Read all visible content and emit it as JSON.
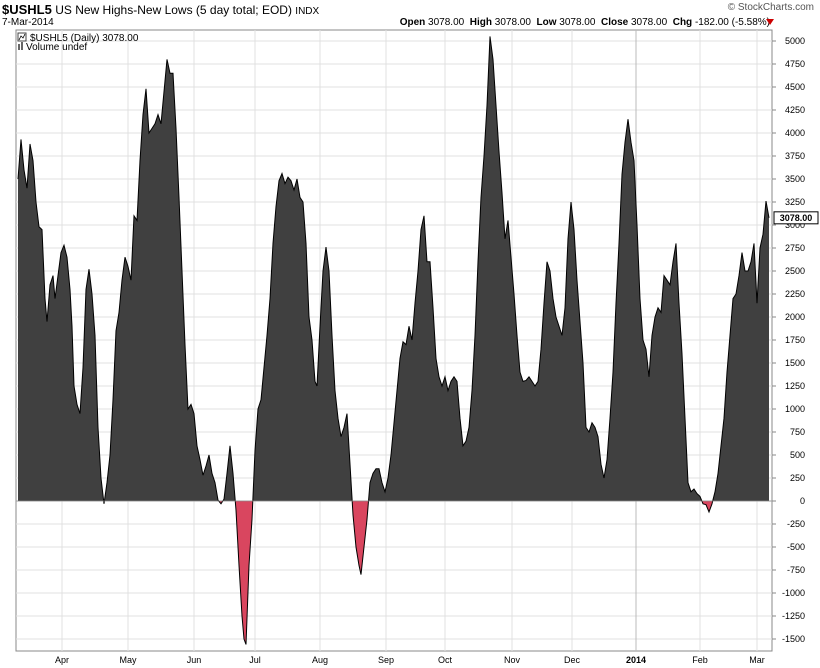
{
  "header": {
    "symbol": "$USHL5",
    "description": "US New Highs-New Lows (5 day total; EOD)",
    "exchange": "INDX",
    "date": "7-Mar-2014",
    "brand": "© StockCharts.com",
    "open_label": "Open",
    "open": "3078.00",
    "high_label": "High",
    "high": "3078.00",
    "low_label": "Low",
    "low": "3078.00",
    "close_label": "Close",
    "close": "3078.00",
    "chg_label": "Chg",
    "chg": "-182.00 (-5.58%)",
    "chg_color": "#cc0000"
  },
  "legend": {
    "series": "$USHL5 (Daily) 3078.00",
    "volume": "Volume undef"
  },
  "last_value_label": "3078.00",
  "colors": {
    "positive_fill": "#404040",
    "negative_fill": "#d9465f",
    "line": "#000000",
    "grid": "#e0e0e0"
  },
  "chart_data": {
    "type": "area",
    "title": "US New Highs-New Lows (5 day total; EOD)",
    "ylim": [
      -1600,
      5100
    ],
    "yticks": [
      -1500,
      -1250,
      -1000,
      -750,
      -500,
      -250,
      0,
      250,
      500,
      750,
      1000,
      1250,
      1500,
      1750,
      2000,
      2250,
      2500,
      2750,
      3000,
      3250,
      3500,
      3750,
      4000,
      4250,
      4500,
      4750,
      5000
    ],
    "xticks": [
      {
        "label": "Apr",
        "pos": 62
      },
      {
        "label": "May",
        "pos": 128
      },
      {
        "label": "Jun",
        "pos": 194
      },
      {
        "label": "Jul",
        "pos": 255
      },
      {
        "label": "Aug",
        "pos": 320
      },
      {
        "label": "Sep",
        "pos": 386
      },
      {
        "label": "Oct",
        "pos": 445
      },
      {
        "label": "Nov",
        "pos": 512
      },
      {
        "label": "Dec",
        "pos": 572
      },
      {
        "label": "2014",
        "pos": 636
      },
      {
        "label": "Feb",
        "pos": 700
      },
      {
        "label": "Mar",
        "pos": 757
      }
    ],
    "x_range": [
      18,
      769
    ],
    "grid": true,
    "series": [
      {
        "name": "$USHL5",
        "points": [
          [
            18,
            3500
          ],
          [
            21,
            3930
          ],
          [
            24,
            3600
          ],
          [
            27,
            3400
          ],
          [
            30,
            3880
          ],
          [
            33,
            3700
          ],
          [
            36,
            3250
          ],
          [
            39,
            2980
          ],
          [
            42,
            2950
          ],
          [
            45,
            2200
          ],
          [
            47,
            1950
          ],
          [
            50,
            2350
          ],
          [
            53,
            2450
          ],
          [
            55,
            2200
          ],
          [
            58,
            2450
          ],
          [
            61,
            2700
          ],
          [
            64,
            2780
          ],
          [
            67,
            2650
          ],
          [
            70,
            2300
          ],
          [
            72,
            1900
          ],
          [
            74,
            1250
          ],
          [
            77,
            1050
          ],
          [
            80,
            950
          ],
          [
            83,
            1450
          ],
          [
            86,
            2300
          ],
          [
            89,
            2520
          ],
          [
            92,
            2250
          ],
          [
            95,
            1800
          ],
          [
            98,
            800
          ],
          [
            101,
            250
          ],
          [
            104,
            -30
          ],
          [
            107,
            200
          ],
          [
            110,
            500
          ],
          [
            113,
            1100
          ],
          [
            116,
            1850
          ],
          [
            119,
            2050
          ],
          [
            122,
            2400
          ],
          [
            125,
            2650
          ],
          [
            128,
            2550
          ],
          [
            131,
            2400
          ],
          [
            134,
            3100
          ],
          [
            137,
            3050
          ],
          [
            140,
            3700
          ],
          [
            143,
            4200
          ],
          [
            146,
            4480
          ],
          [
            149,
            4000
          ],
          [
            152,
            4050
          ],
          [
            155,
            4100
          ],
          [
            158,
            4200
          ],
          [
            161,
            4100
          ],
          [
            164,
            4450
          ],
          [
            167,
            4800
          ],
          [
            170,
            4650
          ],
          [
            173,
            4650
          ],
          [
            176,
            4050
          ],
          [
            179,
            3300
          ],
          [
            182,
            2500
          ],
          [
            185,
            1700
          ],
          [
            188,
            1000
          ],
          [
            191,
            1050
          ],
          [
            194,
            950
          ],
          [
            197,
            600
          ],
          [
            200,
            450
          ],
          [
            203,
            280
          ],
          [
            206,
            380
          ],
          [
            209,
            500
          ],
          [
            212,
            300
          ],
          [
            215,
            200
          ],
          [
            218,
            10
          ],
          [
            221,
            -30
          ],
          [
            224,
            20
          ],
          [
            227,
            300
          ],
          [
            230,
            600
          ],
          [
            233,
            300
          ],
          [
            236,
            -100
          ],
          [
            239,
            -700
          ],
          [
            242,
            -1250
          ],
          [
            244,
            -1500
          ],
          [
            246,
            -1560
          ],
          [
            249,
            -700
          ],
          [
            252,
            -200
          ],
          [
            255,
            550
          ],
          [
            258,
            1000
          ],
          [
            261,
            1100
          ],
          [
            264,
            1450
          ],
          [
            267,
            1800
          ],
          [
            270,
            2200
          ],
          [
            273,
            2800
          ],
          [
            276,
            3200
          ],
          [
            279,
            3480
          ],
          [
            282,
            3560
          ],
          [
            285,
            3450
          ],
          [
            288,
            3520
          ],
          [
            291,
            3480
          ],
          [
            294,
            3380
          ],
          [
            297,
            3500
          ],
          [
            300,
            3300
          ],
          [
            303,
            3250
          ],
          [
            306,
            2800
          ],
          [
            309,
            2000
          ],
          [
            312,
            1750
          ],
          [
            315,
            1300
          ],
          [
            317,
            1250
          ],
          [
            320,
            1900
          ],
          [
            323,
            2500
          ],
          [
            326,
            2760
          ],
          [
            329,
            2500
          ],
          [
            332,
            1800
          ],
          [
            335,
            1200
          ],
          [
            338,
            900
          ],
          [
            341,
            700
          ],
          [
            344,
            800
          ],
          [
            347,
            950
          ],
          [
            350,
            400
          ],
          [
            353,
            -150
          ],
          [
            356,
            -500
          ],
          [
            359,
            -700
          ],
          [
            361,
            -800
          ],
          [
            364,
            -500
          ],
          [
            367,
            -200
          ],
          [
            370,
            200
          ],
          [
            373,
            300
          ],
          [
            376,
            350
          ],
          [
            379,
            350
          ],
          [
            382,
            200
          ],
          [
            385,
            100
          ],
          [
            388,
            250
          ],
          [
            391,
            500
          ],
          [
            394,
            850
          ],
          [
            397,
            1200
          ],
          [
            400,
            1550
          ],
          [
            403,
            1730
          ],
          [
            406,
            1700
          ],
          [
            409,
            1900
          ],
          [
            412,
            1750
          ],
          [
            415,
            2150
          ],
          [
            418,
            2500
          ],
          [
            421,
            2950
          ],
          [
            424,
            3100
          ],
          [
            427,
            2600
          ],
          [
            430,
            2600
          ],
          [
            433,
            2100
          ],
          [
            436,
            1550
          ],
          [
            439,
            1350
          ],
          [
            442,
            1250
          ],
          [
            445,
            1350
          ],
          [
            448,
            1200
          ],
          [
            451,
            1300
          ],
          [
            454,
            1350
          ],
          [
            457,
            1300
          ],
          [
            460,
            900
          ],
          [
            463,
            600
          ],
          [
            466,
            650
          ],
          [
            469,
            800
          ],
          [
            472,
            1200
          ],
          [
            475,
            1800
          ],
          [
            478,
            2600
          ],
          [
            481,
            3300
          ],
          [
            484,
            3750
          ],
          [
            487,
            4300
          ],
          [
            490,
            5050
          ],
          [
            493,
            4800
          ],
          [
            496,
            4300
          ],
          [
            499,
            3800
          ],
          [
            502,
            3350
          ],
          [
            505,
            2850
          ],
          [
            508,
            3050
          ],
          [
            511,
            2650
          ],
          [
            514,
            2250
          ],
          [
            517,
            1800
          ],
          [
            520,
            1400
          ],
          [
            523,
            1300
          ],
          [
            526,
            1310
          ],
          [
            529,
            1350
          ],
          [
            532,
            1300
          ],
          [
            535,
            1250
          ],
          [
            538,
            1300
          ],
          [
            541,
            1650
          ],
          [
            544,
            2150
          ],
          [
            547,
            2600
          ],
          [
            550,
            2500
          ],
          [
            553,
            2200
          ],
          [
            556,
            2000
          ],
          [
            559,
            1900
          ],
          [
            562,
            1800
          ],
          [
            565,
            2100
          ],
          [
            568,
            2850
          ],
          [
            571,
            3250
          ],
          [
            574,
            2950
          ],
          [
            577,
            2400
          ],
          [
            580,
            1950
          ],
          [
            583,
            1500
          ],
          [
            586,
            800
          ],
          [
            589,
            750
          ],
          [
            592,
            850
          ],
          [
            595,
            800
          ],
          [
            598,
            700
          ],
          [
            601,
            400
          ],
          [
            604,
            250
          ],
          [
            607,
            450
          ],
          [
            610,
            900
          ],
          [
            613,
            1400
          ],
          [
            616,
            2150
          ],
          [
            619,
            2800
          ],
          [
            622,
            3550
          ],
          [
            625,
            3900
          ],
          [
            628,
            4150
          ],
          [
            631,
            3900
          ],
          [
            634,
            3700
          ],
          [
            637,
            3000
          ],
          [
            640,
            2200
          ],
          [
            643,
            1750
          ],
          [
            646,
            1650
          ],
          [
            649,
            1350
          ],
          [
            652,
            1800
          ],
          [
            655,
            2000
          ],
          [
            658,
            2100
          ],
          [
            661,
            2050
          ],
          [
            664,
            2450
          ],
          [
            667,
            2400
          ],
          [
            670,
            2350
          ],
          [
            673,
            2600
          ],
          [
            676,
            2800
          ],
          [
            679,
            2150
          ],
          [
            682,
            1600
          ],
          [
            685,
            900
          ],
          [
            688,
            200
          ],
          [
            691,
            100
          ],
          [
            694,
            130
          ],
          [
            697,
            80
          ],
          [
            700,
            50
          ],
          [
            703,
            -30
          ],
          [
            706,
            -40
          ],
          [
            709,
            -120
          ],
          [
            712,
            -30
          ],
          [
            715,
            100
          ],
          [
            718,
            300
          ],
          [
            721,
            600
          ],
          [
            724,
            900
          ],
          [
            727,
            1400
          ],
          [
            730,
            1800
          ],
          [
            733,
            2200
          ],
          [
            736,
            2250
          ],
          [
            739,
            2450
          ],
          [
            742,
            2700
          ],
          [
            745,
            2500
          ],
          [
            748,
            2500
          ],
          [
            751,
            2600
          ],
          [
            754,
            2800
          ],
          [
            757,
            2150
          ],
          [
            760,
            2750
          ],
          [
            763,
            2900
          ],
          [
            766,
            3260
          ],
          [
            769,
            3078
          ]
        ]
      }
    ]
  }
}
